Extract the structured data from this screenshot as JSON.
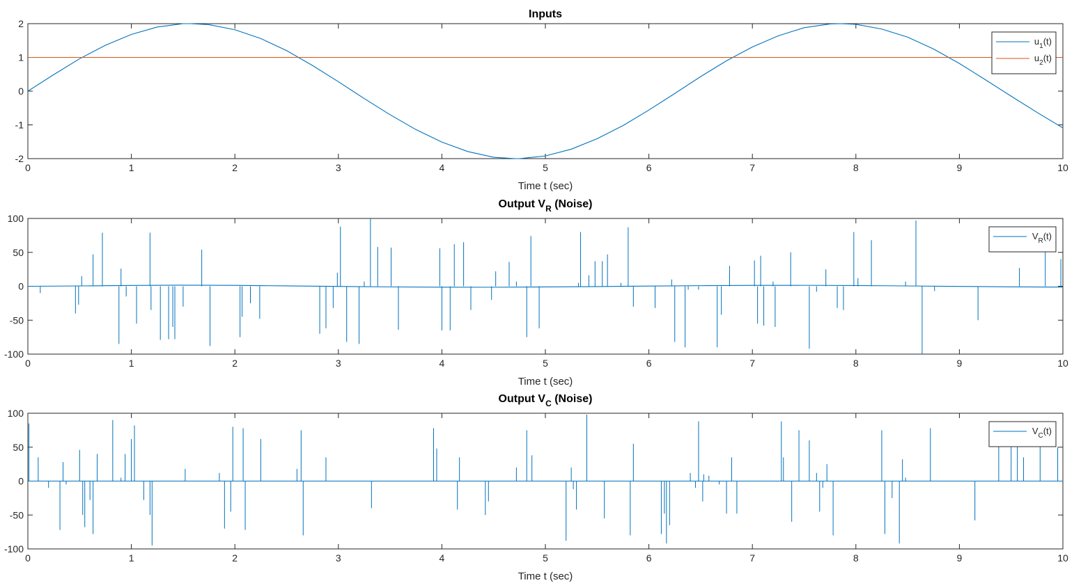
{
  "colors": {
    "blue": "#0072BD",
    "orange": "#D95319",
    "axis": "#262626"
  },
  "chart_data": [
    {
      "type": "line",
      "title": "Inputs",
      "xlabel": "Time t (sec)",
      "ylabel": "",
      "xlim": [
        0,
        10
      ],
      "ylim": [
        -2,
        2
      ],
      "xticks": [
        0,
        1,
        2,
        3,
        4,
        5,
        6,
        7,
        8,
        9,
        10
      ],
      "yticks": [
        -2,
        -1,
        0,
        1,
        2
      ],
      "legend_position": "top-right",
      "legend": [
        {
          "base": "u",
          "sub": "1",
          "suffix": "(t)"
        },
        {
          "base": "u",
          "sub": "2",
          "suffix": "(t)"
        }
      ],
      "series": [
        {
          "color": "#0072BD",
          "x": [
            0,
            0.25,
            0.5,
            0.75,
            1,
            1.25,
            1.5,
            1.57,
            1.75,
            2,
            2.25,
            2.5,
            2.75,
            3,
            3.25,
            3.5,
            3.75,
            4,
            4.25,
            4.5,
            4.71,
            4.75,
            5,
            5.25,
            5.5,
            5.75,
            6,
            6.25,
            6.5,
            6.75,
            7,
            7.25,
            7.5,
            7.75,
            7.85,
            8,
            8.25,
            8.5,
            8.75,
            9,
            9.25,
            9.5,
            9.75,
            10
          ],
          "y": [
            0,
            0.49,
            0.96,
            1.36,
            1.68,
            1.9,
            2.0,
            2.0,
            1.97,
            1.82,
            1.56,
            1.2,
            0.76,
            0.28,
            -0.22,
            -0.7,
            -1.14,
            -1.51,
            -1.79,
            -1.96,
            -2.0,
            -2.0,
            -1.92,
            -1.72,
            -1.41,
            -1.02,
            -0.56,
            -0.07,
            0.43,
            0.9,
            1.31,
            1.64,
            1.88,
            1.99,
            2.0,
            1.98,
            1.84,
            1.6,
            1.25,
            0.82,
            0.34,
            -0.15,
            -0.63,
            -1.09
          ]
        },
        {
          "color": "#D95319",
          "x": [
            0,
            10
          ],
          "y": [
            1,
            1
          ]
        }
      ]
    },
    {
      "type": "line",
      "title_base": "Output V",
      "title_sub": "R",
      "title_suffix": " (Noise)",
      "xlabel": "Time t (sec)",
      "ylabel": "",
      "xlim": [
        0,
        10
      ],
      "ylim": [
        -100,
        100
      ],
      "xticks": [
        0,
        1,
        2,
        3,
        4,
        5,
        6,
        7,
        8,
        9,
        10
      ],
      "yticks": [
        -100,
        -50,
        0,
        50,
        100
      ],
      "legend_position": "top-right",
      "legend": [
        {
          "base": "V",
          "sub": "R",
          "suffix": "(t)"
        }
      ],
      "baseline": {
        "x": [
          0,
          0.5,
          1,
          1.5,
          2,
          2.5,
          3,
          3.5,
          4,
          4.5,
          5,
          5.5,
          6,
          6.5,
          7,
          7.5,
          8,
          8.5,
          9,
          9.5,
          10
        ],
        "y": [
          0,
          0.5,
          1.2,
          1.6,
          1.3,
          0.6,
          -0.2,
          -0.9,
          -1.3,
          -1.4,
          -1.0,
          -0.4,
          0.3,
          0.9,
          1.3,
          1.4,
          1.1,
          0.5,
          -0.2,
          -0.8,
          -1.2
        ]
      },
      "spikes": [
        [
          0.12,
          -10
        ],
        [
          0.46,
          -40
        ],
        [
          0.49,
          -27
        ],
        [
          0.52,
          15
        ],
        [
          0.63,
          47
        ],
        [
          0.72,
          79
        ],
        [
          0.88,
          -85
        ],
        [
          0.9,
          26
        ],
        [
          0.95,
          -15
        ],
        [
          1.05,
          -55
        ],
        [
          1.18,
          79
        ],
        [
          1.19,
          -35
        ],
        [
          1.28,
          -79
        ],
        [
          1.36,
          -78
        ],
        [
          1.4,
          -60
        ],
        [
          1.42,
          -78
        ],
        [
          1.5,
          -30
        ],
        [
          1.68,
          54
        ],
        [
          1.76,
          -88
        ],
        [
          2.05,
          -75
        ],
        [
          2.07,
          -45
        ],
        [
          2.15,
          -25
        ],
        [
          2.24,
          -48
        ],
        [
          2.82,
          -70
        ],
        [
          2.88,
          -62
        ],
        [
          2.95,
          -32
        ],
        [
          2.99,
          20
        ],
        [
          3.02,
          88
        ],
        [
          3.08,
          -82
        ],
        [
          3.2,
          -85
        ],
        [
          3.25,
          7
        ],
        [
          3.31,
          100
        ],
        [
          3.38,
          58
        ],
        [
          3.51,
          57
        ],
        [
          3.58,
          -64
        ],
        [
          3.98,
          56
        ],
        [
          4.0,
          -65
        ],
        [
          4.08,
          -65
        ],
        [
          4.12,
          62
        ],
        [
          4.21,
          65
        ],
        [
          4.28,
          -35
        ],
        [
          4.48,
          -20
        ],
        [
          4.52,
          22
        ],
        [
          4.65,
          36
        ],
        [
          4.72,
          7
        ],
        [
          4.82,
          -75
        ],
        [
          4.86,
          74
        ],
        [
          4.94,
          -62
        ],
        [
          5.32,
          5
        ],
        [
          5.34,
          80
        ],
        [
          5.42,
          16
        ],
        [
          5.48,
          37
        ],
        [
          5.55,
          37
        ],
        [
          5.6,
          47
        ],
        [
          5.73,
          5
        ],
        [
          5.8,
          87
        ],
        [
          5.85,
          -30
        ],
        [
          6.06,
          -32
        ],
        [
          6.22,
          10
        ],
        [
          6.25,
          -82
        ],
        [
          6.35,
          -90
        ],
        [
          6.38,
          -5
        ],
        [
          6.48,
          -5
        ],
        [
          6.66,
          -90
        ],
        [
          6.7,
          -42
        ],
        [
          6.78,
          30
        ],
        [
          7.02,
          38
        ],
        [
          7.05,
          -55
        ],
        [
          7.08,
          45
        ],
        [
          7.11,
          -58
        ],
        [
          7.2,
          7
        ],
        [
          7.22,
          -60
        ],
        [
          7.37,
          50
        ],
        [
          7.55,
          -92
        ],
        [
          7.62,
          -8
        ],
        [
          7.71,
          25
        ],
        [
          7.82,
          -32
        ],
        [
          7.88,
          -35
        ],
        [
          7.98,
          80
        ],
        [
          8.02,
          12
        ],
        [
          8.15,
          68
        ],
        [
          8.48,
          7
        ],
        [
          8.58,
          97
        ],
        [
          8.64,
          -100
        ],
        [
          8.76,
          -7
        ],
        [
          9.18,
          -50
        ],
        [
          9.58,
          27
        ],
        [
          9.83,
          56
        ],
        [
          9.98,
          40
        ]
      ]
    },
    {
      "type": "line",
      "title_base": "Output V",
      "title_sub": "C",
      "title_suffix": " (Noise)",
      "xlabel": "Time t (sec)",
      "ylabel": "",
      "xlim": [
        0,
        10
      ],
      "ylim": [
        -100,
        100
      ],
      "xticks": [
        0,
        1,
        2,
        3,
        4,
        5,
        6,
        7,
        8,
        9,
        10
      ],
      "yticks": [
        -100,
        -50,
        0,
        50,
        100
      ],
      "legend_position": "top-right",
      "legend": [
        {
          "base": "V",
          "sub": "C",
          "suffix": "(t)"
        }
      ],
      "baseline": {
        "x": [
          0,
          10
        ],
        "y": [
          0,
          0
        ]
      },
      "spikes": [
        [
          0.01,
          85
        ],
        [
          0.1,
          35
        ],
        [
          0.2,
          -10
        ],
        [
          0.31,
          -72
        ],
        [
          0.34,
          28
        ],
        [
          0.37,
          -5
        ],
        [
          0.5,
          46
        ],
        [
          0.53,
          -50
        ],
        [
          0.55,
          -68
        ],
        [
          0.6,
          -28
        ],
        [
          0.63,
          -78
        ],
        [
          0.67,
          40
        ],
        [
          0.82,
          90
        ],
        [
          0.9,
          5
        ],
        [
          0.94,
          40
        ],
        [
          1.0,
          62
        ],
        [
          1.03,
          82
        ],
        [
          1.12,
          -28
        ],
        [
          1.18,
          -50
        ],
        [
          1.2,
          -95
        ],
        [
          1.52,
          18
        ],
        [
          1.85,
          12
        ],
        [
          1.9,
          -70
        ],
        [
          1.96,
          -45
        ],
        [
          1.98,
          80
        ],
        [
          2.08,
          78
        ],
        [
          2.1,
          -72
        ],
        [
          2.25,
          62
        ],
        [
          2.6,
          18
        ],
        [
          2.64,
          75
        ],
        [
          2.66,
          -80
        ],
        [
          2.88,
          35
        ],
        [
          3.32,
          -40
        ],
        [
          3.92,
          78
        ],
        [
          3.95,
          48
        ],
        [
          4.15,
          -42
        ],
        [
          4.17,
          35
        ],
        [
          4.42,
          -50
        ],
        [
          4.45,
          -30
        ],
        [
          4.72,
          20
        ],
        [
          4.82,
          75
        ],
        [
          4.87,
          38
        ],
        [
          5.2,
          -88
        ],
        [
          5.25,
          20
        ],
        [
          5.27,
          -12
        ],
        [
          5.3,
          -42
        ],
        [
          5.4,
          98
        ],
        [
          5.57,
          -55
        ],
        [
          5.82,
          -80
        ],
        [
          5.85,
          55
        ],
        [
          6.12,
          -78
        ],
        [
          6.15,
          -48
        ],
        [
          6.17,
          -92
        ],
        [
          6.2,
          -65
        ],
        [
          6.4,
          12
        ],
        [
          6.45,
          -10
        ],
        [
          6.48,
          88
        ],
        [
          6.52,
          -30
        ],
        [
          6.53,
          10
        ],
        [
          6.58,
          8
        ],
        [
          6.68,
          -5
        ],
        [
          6.75,
          -48
        ],
        [
          6.8,
          35
        ],
        [
          6.85,
          -48
        ],
        [
          7.28,
          88
        ],
        [
          7.3,
          35
        ],
        [
          7.38,
          -60
        ],
        [
          7.45,
          75
        ],
        [
          7.55,
          60
        ],
        [
          7.62,
          12
        ],
        [
          7.65,
          -45
        ],
        [
          7.68,
          -10
        ],
        [
          7.72,
          25
        ],
        [
          7.78,
          -80
        ],
        [
          8.25,
          75
        ],
        [
          8.28,
          -78
        ],
        [
          8.35,
          -25
        ],
        [
          8.42,
          -92
        ],
        [
          8.45,
          32
        ],
        [
          8.48,
          5
        ],
        [
          8.72,
          78
        ],
        [
          9.15,
          -58
        ],
        [
          9.38,
          62
        ],
        [
          9.5,
          60
        ],
        [
          9.56,
          60
        ],
        [
          9.62,
          35
        ],
        [
          9.78,
          60
        ],
        [
          9.95,
          50
        ]
      ]
    }
  ]
}
